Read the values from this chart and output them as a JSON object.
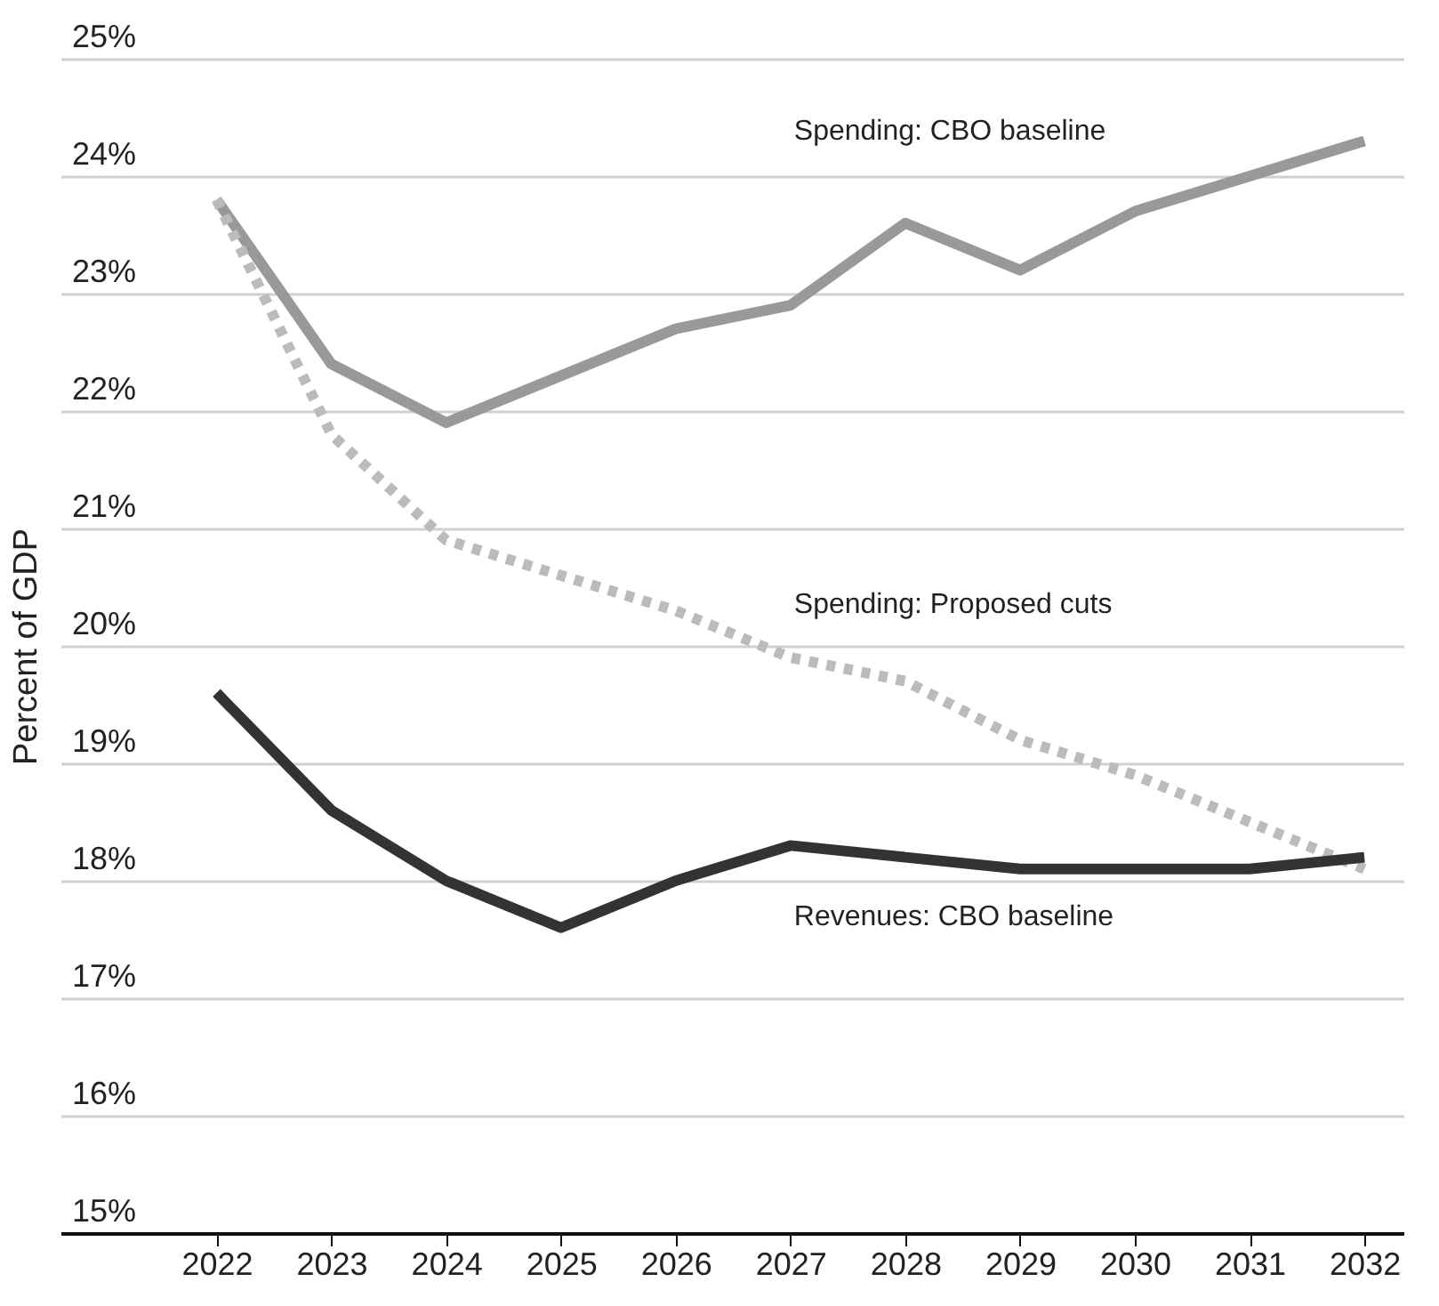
{
  "chart_data": {
    "type": "line",
    "ylabel": "Percent of GDP",
    "categories": [
      "2022",
      "2023",
      "2024",
      "2025",
      "2026",
      "2027",
      "2028",
      "2029",
      "2030",
      "2031",
      "2032"
    ],
    "series": [
      {
        "name": "Spending: CBO baseline",
        "color": "#999999",
        "line_style": "solid",
        "values": [
          23.8,
          22.4,
          21.9,
          22.3,
          22.7,
          22.9,
          23.6,
          23.2,
          23.7,
          24.0,
          24.3
        ]
      },
      {
        "name": "Spending: Proposed cuts",
        "color": "#bbbbbb",
        "line_style": "dotted",
        "values": [
          23.8,
          21.8,
          20.9,
          20.6,
          20.3,
          19.9,
          19.7,
          19.2,
          18.9,
          18.5,
          18.1
        ]
      },
      {
        "name": "Revenues: CBO baseline",
        "color": "#333333",
        "line_style": "solid",
        "values": [
          19.6,
          18.6,
          18.0,
          17.6,
          18.0,
          18.3,
          18.2,
          18.1,
          18.1,
          18.1,
          18.2
        ]
      }
    ],
    "ylim": [
      15,
      25
    ],
    "yticks": [
      {
        "value": 15,
        "label": "15%"
      },
      {
        "value": 16,
        "label": "16%"
      },
      {
        "value": 17,
        "label": "17%"
      },
      {
        "value": 18,
        "label": "18%"
      },
      {
        "value": 19,
        "label": "19%"
      },
      {
        "value": 20,
        "label": "20%"
      },
      {
        "value": 21,
        "label": "21%"
      },
      {
        "value": 22,
        "label": "22%"
      },
      {
        "value": 23,
        "label": "23%"
      },
      {
        "value": 24,
        "label": "24%"
      },
      {
        "value": 25,
        "label": "25%"
      }
    ],
    "grid": "y",
    "legend": false
  }
}
